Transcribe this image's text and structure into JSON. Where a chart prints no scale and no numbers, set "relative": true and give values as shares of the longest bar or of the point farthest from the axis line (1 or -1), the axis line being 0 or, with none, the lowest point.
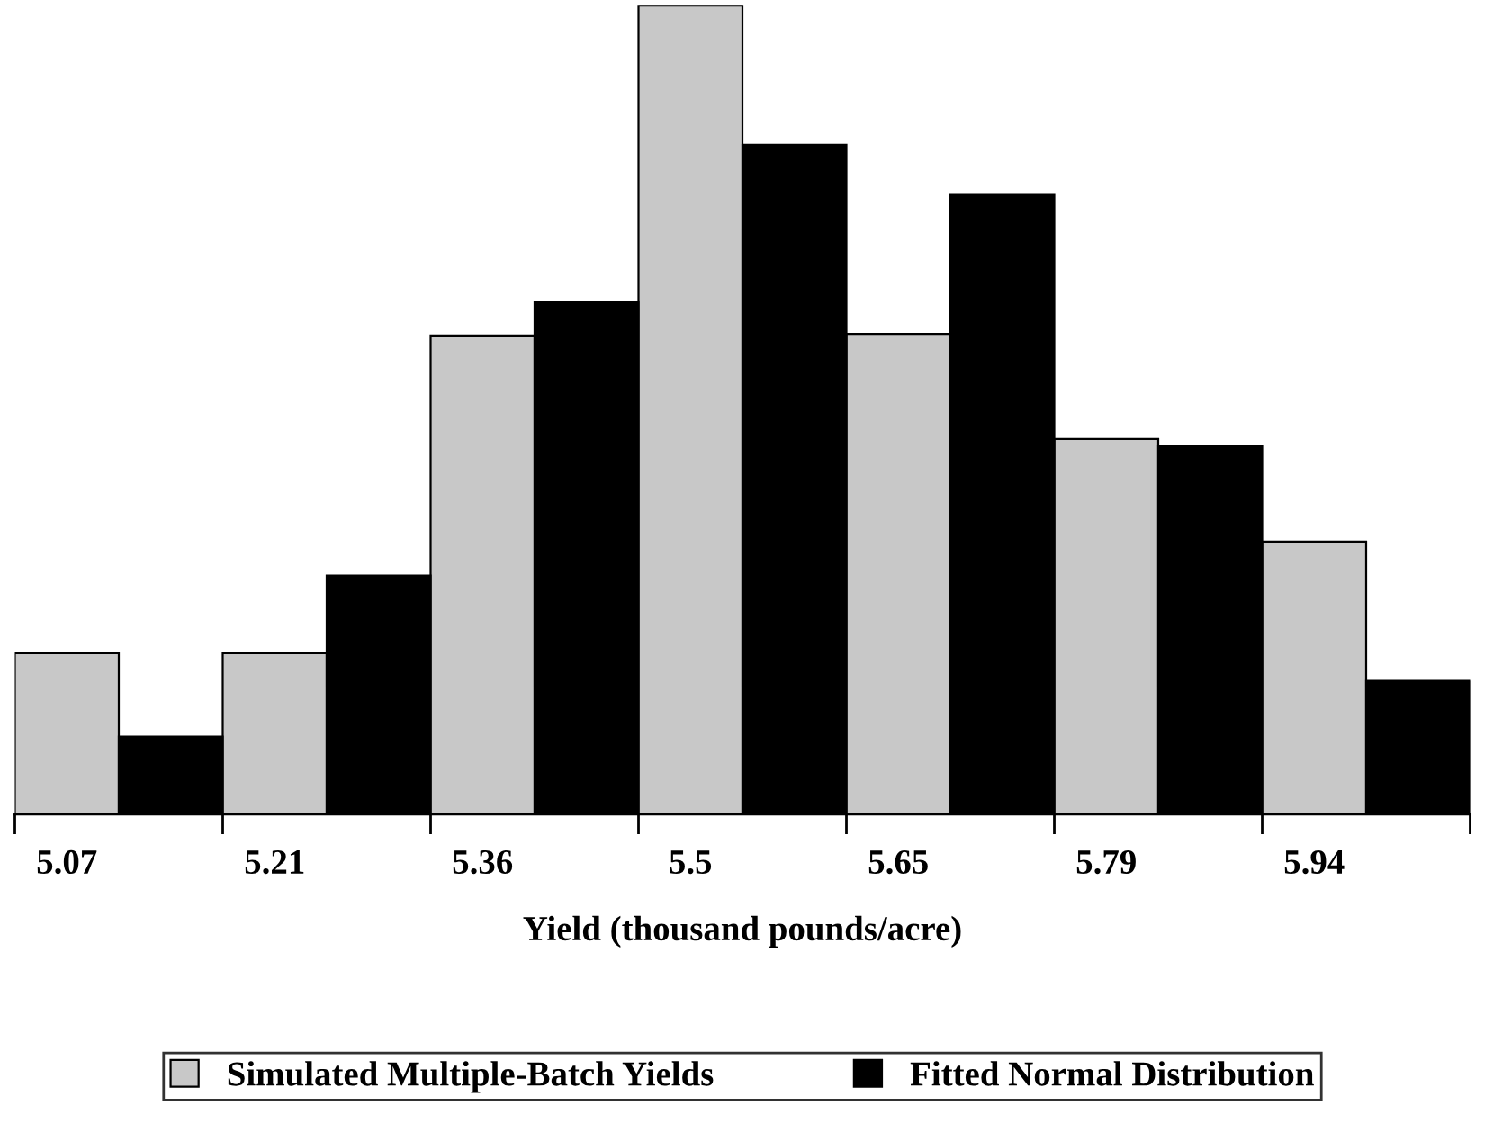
{
  "chart_data": {
    "type": "bar",
    "relative": true,
    "xlabel": "Yield (thousand pounds/acre)",
    "categories": [
      "5.07",
      "5.21",
      "5.36",
      "5.5",
      "5.65",
      "5.79",
      "5.94"
    ],
    "series": [
      {
        "name": "Simulated Multiple-Batch Yields",
        "color": "#c8c8c8",
        "values": [
          0.199,
          0.199,
          0.592,
          1.0,
          0.594,
          0.464,
          0.337
        ]
      },
      {
        "name": "Fitted Normal Distribution",
        "color": "#000000",
        "values": [
          0.096,
          0.295,
          0.634,
          0.828,
          0.766,
          0.455,
          0.165
        ]
      }
    ],
    "legend": "bottom",
    "grid": false
  }
}
